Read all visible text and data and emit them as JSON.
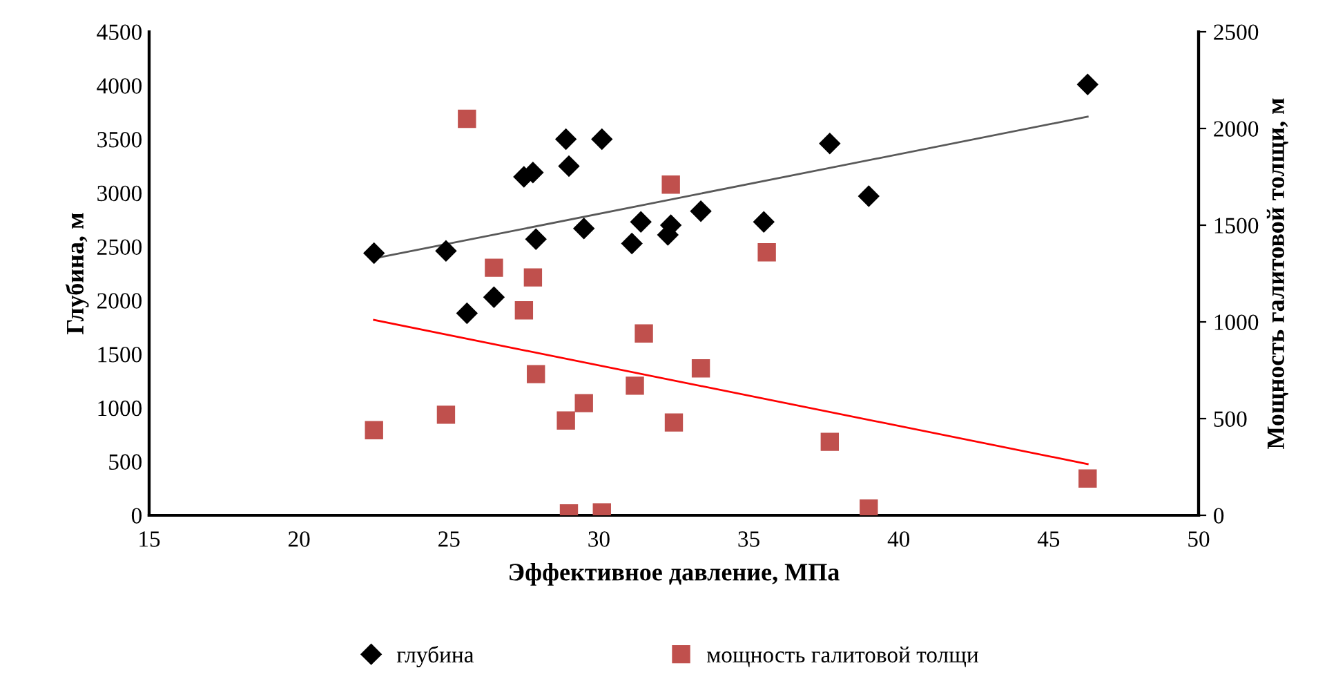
{
  "chart_data": {
    "type": "scatter",
    "xlabel": "Эффективное давление, МПа",
    "ylabel": "Глубина, м",
    "y2label": "Мощность галитовой толщи, м",
    "xlim": [
      15,
      50
    ],
    "xticks": [
      15,
      20,
      25,
      30,
      35,
      40,
      45,
      50
    ],
    "ylim": [
      0,
      4500
    ],
    "yticks": [
      0,
      500,
      1000,
      1500,
      2000,
      2500,
      3000,
      3500,
      4000,
      4500
    ],
    "y2lim": [
      0,
      2500
    ],
    "y2ticks": [
      0,
      500,
      1000,
      1500,
      2000,
      2500
    ],
    "grid": false,
    "legend": "bottom",
    "series": [
      {
        "name": "глубина",
        "color": "#000000",
        "marker": "diamond",
        "x": [
          22.5,
          24.9,
          25.6,
          26.5,
          27.5,
          27.8,
          27.9,
          28.9,
          29.0,
          29.5,
          30.1,
          31.1,
          31.4,
          32.3,
          32.4,
          33.4,
          35.5,
          37.7,
          39.0,
          46.3
        ],
        "values": [
          2440,
          2460,
          1880,
          2030,
          3150,
          3190,
          2570,
          3500,
          3250,
          2670,
          3500,
          2530,
          2730,
          2610,
          2700,
          2830,
          2730,
          3460,
          2970,
          4010
        ]
      },
      {
        "name": "мощность галитовой толщи",
        "color": "#c0504d",
        "marker": "square",
        "axis": "y2",
        "x": [
          22.5,
          24.9,
          25.6,
          26.5,
          27.5,
          27.8,
          27.9,
          28.9,
          29.0,
          29.5,
          30.1,
          31.2,
          31.5,
          32.4,
          32.5,
          33.4,
          35.6,
          37.7,
          39.0,
          46.3
        ],
        "values": [
          440,
          520,
          2050,
          1280,
          1060,
          1230,
          730,
          490,
          10,
          580,
          15,
          670,
          940,
          1710,
          480,
          760,
          1360,
          380,
          35,
          190
        ]
      },
      {
        "type": "line",
        "color": "#595959",
        "marker": "none",
        "x": [
          22.5,
          46.3
        ],
        "values": [
          2390,
          3710
        ]
      },
      {
        "type": "line",
        "color": "#ff0000",
        "marker": "none",
        "axis": "y2",
        "x": [
          22.5,
          46.3
        ],
        "values": [
          1010,
          265
        ]
      }
    ]
  }
}
